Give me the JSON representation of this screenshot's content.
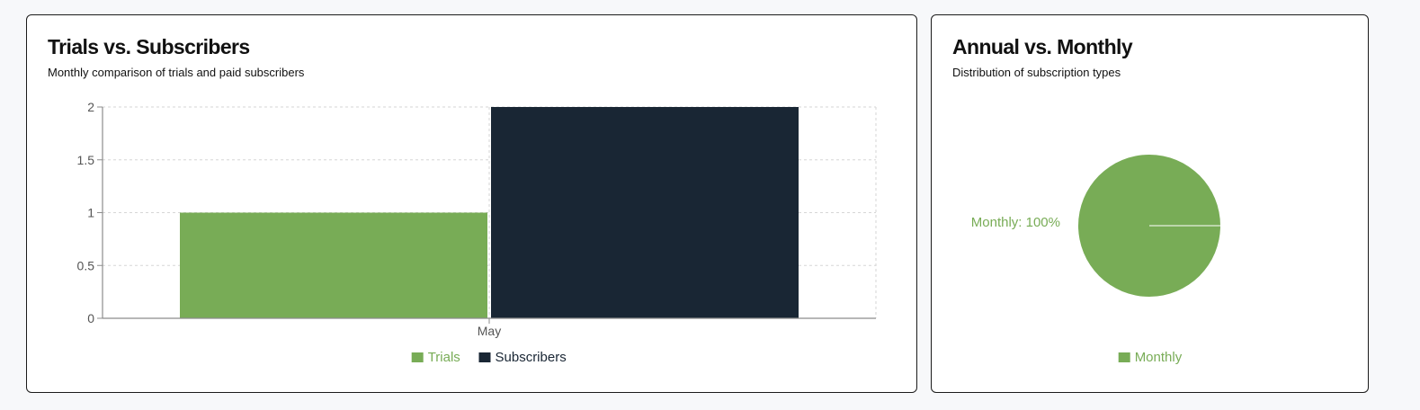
{
  "cards": {
    "trials": {
      "title": "Trials vs. Subscribers",
      "subtitle": "Monthly comparison of trials and paid subscribers"
    },
    "subscription_types": {
      "title": "Annual vs. Monthly",
      "subtitle": "Distribution of subscription types"
    }
  },
  "colors": {
    "trials": "#78ac56",
    "subscribers": "#192634",
    "monthly": "#78ac56",
    "axis": "#8c8c8c",
    "grid": "#d6d6d6",
    "tick_text": "#555555"
  },
  "chart_data": [
    {
      "type": "bar",
      "title": "Trials vs. Subscribers",
      "subtitle": "Monthly comparison of trials and paid subscribers",
      "categories": [
        "May"
      ],
      "series": [
        {
          "name": "Trials",
          "values": [
            1
          ]
        },
        {
          "name": "Subscribers",
          "values": [
            2
          ]
        }
      ],
      "ylim": [
        0,
        2
      ],
      "yticks": [
        "0",
        "0.5",
        "1",
        "1.5",
        "2"
      ],
      "xlabel": "",
      "ylabel": "",
      "grid": true,
      "legend": "bottom"
    },
    {
      "type": "pie",
      "title": "Annual vs. Monthly",
      "subtitle": "Distribution of subscription types",
      "slices": [
        {
          "name": "Monthly",
          "value": 100,
          "label": "Monthly: 100%"
        }
      ],
      "legend": "bottom"
    }
  ]
}
